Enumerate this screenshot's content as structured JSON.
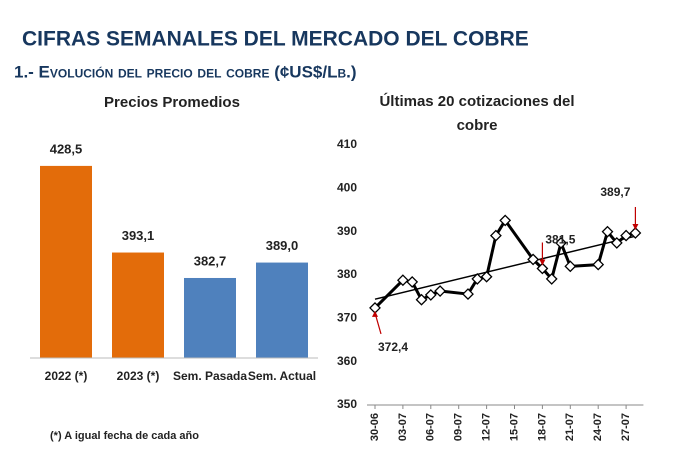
{
  "header": {
    "title": "CIFRAS SEMANALES DEL MERCADO DEL COBRE",
    "subtitle": "1.- Evolución del precio del cobre (¢US$/Lb.)"
  },
  "chart_data": [
    {
      "type": "bar",
      "title": "Precios Promedios",
      "categories": [
        "2022 (*)",
        "2023 (*)",
        "Sem. Pasada",
        "Sem. Actual"
      ],
      "values": [
        428.5,
        393.1,
        382.7,
        389.0
      ],
      "value_labels": [
        "428,5",
        "393,1",
        "382,7",
        "389,0"
      ],
      "colors": [
        "#e36c0a",
        "#e36c0a",
        "#4f81bd",
        "#4f81bd"
      ],
      "ylim": [
        350,
        435
      ],
      "note": "(*) A igual fecha de cada año"
    },
    {
      "type": "line",
      "title": "Últimas 20 cotizaciones del cobre",
      "categories": [
        "30-06",
        null,
        null,
        "03-07",
        null,
        null,
        "06-07",
        null,
        null,
        "09-07",
        null,
        null,
        "12-07",
        null,
        null,
        "15-07",
        null,
        null,
        "18-07",
        null,
        null,
        "21-07",
        null,
        null,
        "24-07",
        null,
        null,
        "27-07",
        null
      ],
      "series": [
        {
          "color": "#000000",
          "values": [
            372.4,
            null,
            null,
            378.8,
            378.4,
            374.3,
            375.4,
            376.3,
            null,
            null,
            375.6,
            379.1,
            379.6,
            389.1,
            392.6,
            null,
            null,
            383.6,
            381.5,
            379.1,
            387.4,
            382.0,
            null,
            null,
            382.4,
            390.0,
            387.4,
            389.1,
            389.7
          ],
          "value_labels": [
            "372,4",
            null,
            null,
            null,
            null,
            null,
            null,
            null,
            null,
            null,
            null,
            null,
            null,
            null,
            null,
            null,
            null,
            null,
            "381,5",
            null,
            null,
            null,
            null,
            null,
            null,
            null,
            null,
            null,
            "389,7"
          ]
        }
      ],
      "ylim": [
        350,
        410
      ],
      "yticks": [
        350,
        360,
        370,
        380,
        390,
        400,
        410
      ],
      "trendline": true
    }
  ]
}
